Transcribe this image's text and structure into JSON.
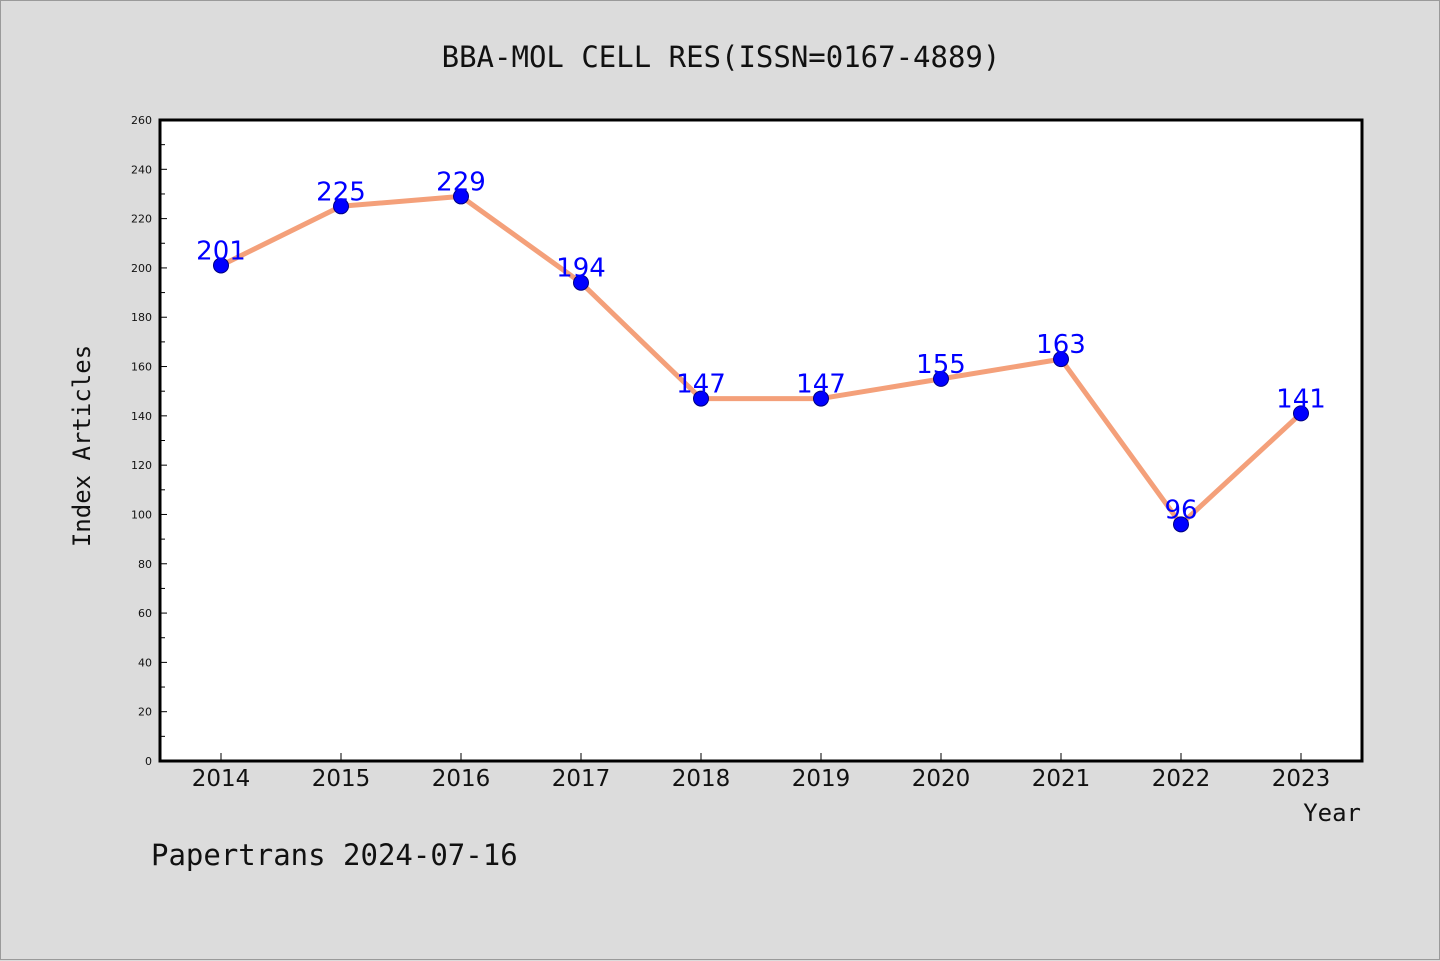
{
  "chart_data": {
    "type": "line",
    "title": "BBA-MOL CELL RES(ISSN=0167-4889)",
    "xlabel": "Year",
    "ylabel": "Index Articles",
    "categories": [
      "2014",
      "2015",
      "2016",
      "2017",
      "2018",
      "2019",
      "2020",
      "2021",
      "2022",
      "2023"
    ],
    "values": [
      201,
      225,
      229,
      194,
      147,
      147,
      155,
      163,
      96,
      141
    ],
    "ylim": [
      0,
      260
    ],
    "yticks": [
      "0",
      "20",
      "40",
      "60",
      "80",
      "100",
      "120",
      "140",
      "160",
      "180",
      "200",
      "220",
      "240",
      "260"
    ],
    "grid": false,
    "line_color": "#f4a07a",
    "marker_color": "#0000ff",
    "label_color": "#0000ff"
  },
  "footer": "Papertrans 2024-07-16"
}
